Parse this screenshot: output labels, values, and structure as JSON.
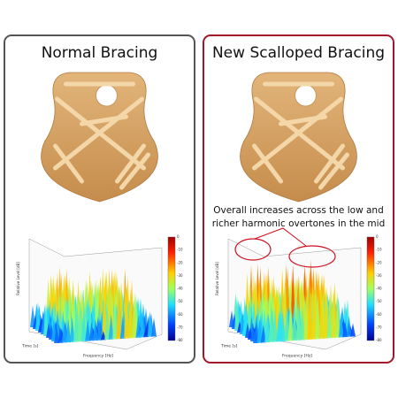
{
  "panels": [
    {
      "title": "Normal Bracing",
      "plot": {
        "z_label": "Relative Level [dB]",
        "time_label": "Time [s]",
        "freq_label": "Frequency [Hz]",
        "colorbar_ticks": [
          0,
          -10,
          -20,
          -30,
          -40,
          -50,
          -60,
          -70,
          -80
        ]
      }
    },
    {
      "title": "New Scalloped Bracing",
      "annotation": [
        "Overall increases across the low and",
        "richer harmonic overtones in the mid"
      ],
      "plot": {
        "z_label": "Relative Level [dB]",
        "time_label": "Time [s]",
        "freq_label": "Frequency [Hz]",
        "colorbar_ticks": [
          0,
          -10,
          -20,
          -30,
          -40,
          -50,
          -60,
          -70,
          -80
        ]
      }
    }
  ]
}
